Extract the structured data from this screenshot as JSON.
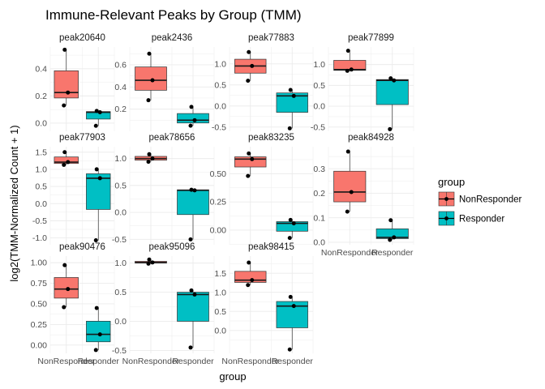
{
  "chart_data": {
    "type": "box",
    "title": "Immune-Relevant Peaks by Group (TMM)",
    "xlabel": "group",
    "ylabel": "log2(TMM-Normalized Count + 1)",
    "categories": [
      "NonResponder",
      "Responder"
    ],
    "legend": {
      "title": "group",
      "position": "right",
      "entries": [
        {
          "label": "NonResponder",
          "color": "#F8766D"
        },
        {
          "label": "Responder",
          "color": "#00BFC4"
        }
      ]
    },
    "grid": true,
    "panels": [
      {
        "name": "peak20640",
        "ylim": [
          -0.06,
          0.56
        ],
        "yticks": [
          "0.0",
          "0.2",
          "0.4"
        ],
        "boxes": [
          {
            "group": "NonResponder",
            "min": 0.13,
            "q1": 0.185,
            "median": 0.225,
            "q3": 0.385,
            "max": 0.54
          },
          {
            "group": "Responder",
            "min": -0.02,
            "q1": 0.03,
            "median": 0.08,
            "q3": 0.085,
            "max": 0.09
          }
        ],
        "points": [
          {
            "group": "NonResponder",
            "values": [
              0.13,
              0.225,
              0.54
            ]
          },
          {
            "group": "Responder",
            "values": [
              -0.02,
              0.08,
              0.09
            ]
          }
        ]
      },
      {
        "name": "peak2436",
        "ylim": [
          0.0,
          0.76
        ],
        "yticks": [
          "0.2",
          "0.4",
          "0.6"
        ],
        "boxes": [
          {
            "group": "NonResponder",
            "min": 0.28,
            "q1": 0.37,
            "median": 0.46,
            "q3": 0.58,
            "max": 0.7
          },
          {
            "group": "Responder",
            "min": 0.05,
            "q1": 0.075,
            "median": 0.1,
            "q3": 0.16,
            "max": 0.22
          }
        ],
        "points": [
          {
            "group": "NonResponder",
            "values": [
              0.28,
              0.46,
              0.7
            ]
          },
          {
            "group": "Responder",
            "values": [
              0.05,
              0.1,
              0.22
            ]
          }
        ]
      },
      {
        "name": "peak77883",
        "ylim": [
          -0.6,
          1.4
        ],
        "yticks": [
          "-0.5",
          "0.0",
          "0.5",
          "1.0"
        ],
        "boxes": [
          {
            "group": "NonResponder",
            "min": 0.6,
            "q1": 0.78,
            "median": 0.95,
            "q3": 1.11,
            "max": 1.28
          },
          {
            "group": "Responder",
            "min": -0.53,
            "q1": -0.15,
            "median": 0.24,
            "q3": 0.31,
            "max": 0.38
          }
        ],
        "points": [
          {
            "group": "NonResponder",
            "values": [
              0.6,
              0.95,
              1.28
            ]
          },
          {
            "group": "Responder",
            "values": [
              -0.53,
              0.24,
              0.38
            ]
          }
        ]
      },
      {
        "name": "peak77899",
        "ylim": [
          -0.6,
          1.42
        ],
        "yticks": [
          "-0.5",
          "0.0",
          "0.5",
          "1.0"
        ],
        "boxes": [
          {
            "group": "NonResponder",
            "min": 0.85,
            "q1": 0.86,
            "median": 0.88,
            "q3": 1.1,
            "max": 1.33
          },
          {
            "group": "Responder",
            "min": -0.55,
            "q1": 0.04,
            "median": 0.62,
            "q3": 0.64,
            "max": 0.67
          }
        ],
        "points": [
          {
            "group": "NonResponder",
            "values": [
              0.85,
              0.88,
              1.33
            ]
          },
          {
            "group": "Responder",
            "values": [
              -0.55,
              0.62,
              0.67
            ]
          }
        ]
      },
      {
        "name": "peak77903",
        "ylim": [
          -1.2,
          1.66
        ],
        "yticks": [
          "-1.0",
          "-0.5",
          "0.0",
          "0.5",
          "1.0",
          "1.5"
        ],
        "boxes": [
          {
            "group": "NonResponder",
            "min": 1.13,
            "q1": 1.17,
            "median": 1.21,
            "q3": 1.36,
            "max": 1.5
          },
          {
            "group": "Responder",
            "min": -1.07,
            "q1": -0.17,
            "median": 0.74,
            "q3": 0.87,
            "max": 1.0
          }
        ],
        "points": [
          {
            "group": "NonResponder",
            "values": [
              1.13,
              1.21,
              1.5
            ]
          },
          {
            "group": "Responder",
            "values": [
              -1.07,
              0.74,
              1.0
            ]
          }
        ]
      },
      {
        "name": "peak78656",
        "ylim": [
          -0.6,
          1.22
        ],
        "yticks": [
          "-0.5",
          "0.0",
          "0.5",
          "1.0"
        ],
        "boxes": [
          {
            "group": "NonResponder",
            "min": 0.94,
            "q1": 0.97,
            "median": 1.0,
            "q3": 1.04,
            "max": 1.08
          },
          {
            "group": "Responder",
            "min": -0.5,
            "q1": -0.04,
            "median": 0.41,
            "q3": 0.42,
            "max": 0.42
          }
        ],
        "points": [
          {
            "group": "NonResponder",
            "values": [
              0.94,
              1.0,
              1.08
            ]
          },
          {
            "group": "Responder",
            "values": [
              -0.5,
              0.41,
              0.42
            ]
          }
        ]
      },
      {
        "name": "peak83235",
        "ylim": [
          -0.13,
          0.74
        ],
        "yticks": [
          "0.00",
          "0.25",
          "0.50"
        ],
        "boxes": [
          {
            "group": "NonResponder",
            "min": 0.48,
            "q1": 0.56,
            "median": 0.63,
            "q3": 0.65,
            "max": 0.68
          },
          {
            "group": "Responder",
            "min": -0.07,
            "q1": -0.01,
            "median": 0.06,
            "q3": 0.075,
            "max": 0.09
          }
        ],
        "points": [
          {
            "group": "NonResponder",
            "values": [
              0.48,
              0.63,
              0.68
            ]
          },
          {
            "group": "Responder",
            "values": [
              -0.07,
              0.06,
              0.09
            ]
          }
        ]
      },
      {
        "name": "peak84928",
        "ylim": [
          -0.01,
          0.39
        ],
        "yticks": [
          "0.0",
          "0.1",
          "0.2",
          "0.3"
        ],
        "boxes": [
          {
            "group": "NonResponder",
            "min": 0.125,
            "q1": 0.165,
            "median": 0.205,
            "q3": 0.29,
            "max": 0.37
          },
          {
            "group": "Responder",
            "min": 0.01,
            "q1": 0.015,
            "median": 0.02,
            "q3": 0.055,
            "max": 0.09
          }
        ],
        "points": [
          {
            "group": "NonResponder",
            "values": [
              0.125,
              0.205,
              0.37
            ]
          },
          {
            "group": "Responder",
            "values": [
              0.01,
              0.02,
              0.09
            ]
          }
        ]
      },
      {
        "name": "peak90476",
        "ylim": [
          -0.1,
          1.08
        ],
        "yticks": [
          "0.00",
          "0.25",
          "0.50",
          "0.75",
          "1.00"
        ],
        "boxes": [
          {
            "group": "NonResponder",
            "min": 0.46,
            "q1": 0.57,
            "median": 0.68,
            "q3": 0.82,
            "max": 0.97
          },
          {
            "group": "Responder",
            "min": -0.06,
            "q1": 0.04,
            "median": 0.13,
            "q3": 0.29,
            "max": 0.45
          }
        ],
        "points": [
          {
            "group": "NonResponder",
            "values": [
              0.46,
              0.68,
              0.97
            ]
          },
          {
            "group": "Responder",
            "values": [
              -0.06,
              0.13,
              0.45
            ]
          }
        ]
      },
      {
        "name": "peak95096",
        "ylim": [
          -0.55,
          1.12
        ],
        "yticks": [
          "-0.5",
          "0.0",
          "0.5",
          "1.0"
        ],
        "boxes": [
          {
            "group": "NonResponder",
            "min": 0.99,
            "q1": 1.0,
            "median": 1.01,
            "q3": 1.03,
            "max": 1.06
          },
          {
            "group": "Responder",
            "min": -0.45,
            "q1": 0.0,
            "median": 0.46,
            "q3": 0.5,
            "max": 0.53
          }
        ],
        "points": [
          {
            "group": "NonResponder",
            "values": [
              0.99,
              1.01,
              1.06
            ]
          },
          {
            "group": "Responder",
            "values": [
              -0.45,
              0.46,
              0.53
            ]
          }
        ]
      },
      {
        "name": "peak98415",
        "ylim": [
          -0.6,
          1.95
        ],
        "yticks": [
          "0.0",
          "0.5",
          "1.0",
          "1.5"
        ],
        "boxes": [
          {
            "group": "NonResponder",
            "min": 1.19,
            "q1": 1.26,
            "median": 1.32,
            "q3": 1.55,
            "max": 1.78
          },
          {
            "group": "Responder",
            "min": -0.5,
            "q1": 0.07,
            "median": 0.64,
            "q3": 0.76,
            "max": 0.88
          }
        ],
        "points": [
          {
            "group": "NonResponder",
            "values": [
              1.19,
              1.32,
              1.78
            ]
          },
          {
            "group": "Responder",
            "values": [
              -0.5,
              0.64,
              0.88
            ]
          }
        ]
      }
    ]
  }
}
